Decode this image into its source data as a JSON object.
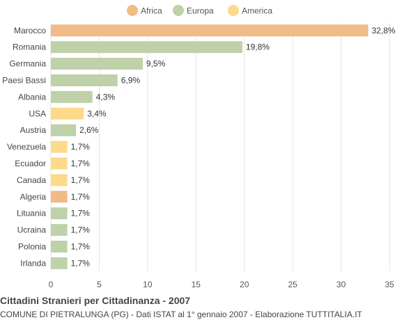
{
  "chart_data": {
    "type": "bar",
    "orientation": "horizontal",
    "title": "Cittadini Stranieri per Cittadinanza - 2007",
    "subtitle": "COMUNE DI PIETRALUNGA (PG) - Dati ISTAT al 1° gennaio 2007 - Elaborazione TUTTITALIA.IT",
    "xlim": [
      0,
      35
    ],
    "x_ticks": [
      "0",
      "5",
      "10",
      "15",
      "20",
      "25",
      "30",
      "35"
    ],
    "grid": true,
    "legend_position": "top-center",
    "legend": [
      {
        "name": "Africa",
        "color": "#f0bb84"
      },
      {
        "name": "Europa",
        "color": "#bfd1a8"
      },
      {
        "name": "America",
        "color": "#fdd98a"
      }
    ],
    "categories": [
      "Marocco",
      "Romania",
      "Germania",
      "Paesi Bassi",
      "Albania",
      "USA",
      "Austria",
      "Venezuela",
      "Ecuador",
      "Canada",
      "Algeria",
      "Lituania",
      "Ucraina",
      "Polonia",
      "Irlanda"
    ],
    "values": [
      32.8,
      19.8,
      9.5,
      6.9,
      4.3,
      3.4,
      2.6,
      1.7,
      1.7,
      1.7,
      1.7,
      1.7,
      1.7,
      1.7,
      1.7
    ],
    "value_labels": [
      "32,8%",
      "19,8%",
      "9,5%",
      "6,9%",
      "4,3%",
      "3,4%",
      "2,6%",
      "1,7%",
      "1,7%",
      "1,7%",
      "1,7%",
      "1,7%",
      "1,7%",
      "1,7%",
      "1,7%"
    ],
    "groups": [
      "Africa",
      "Europa",
      "Europa",
      "Europa",
      "Europa",
      "America",
      "Europa",
      "America",
      "America",
      "America",
      "Africa",
      "Europa",
      "Europa",
      "Europa",
      "Europa"
    ]
  }
}
